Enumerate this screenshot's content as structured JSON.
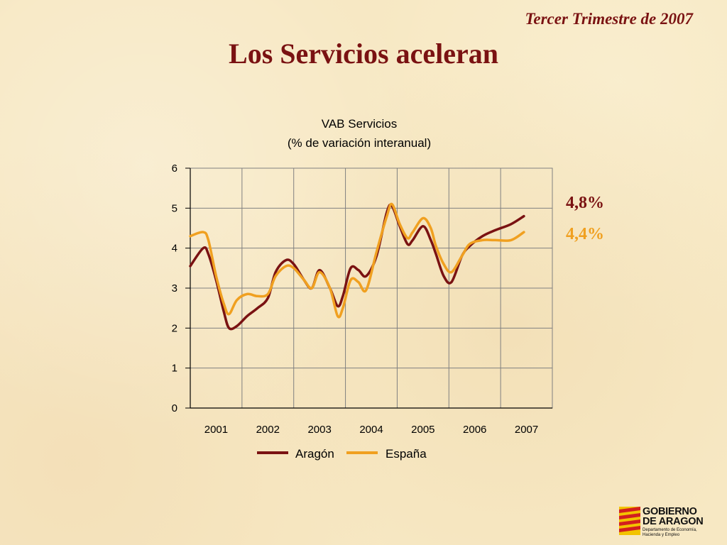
{
  "header": {
    "period": "Tercer Trimestre de 2007",
    "title": "Los Servicios aceleran"
  },
  "annotations": {
    "aragon_last": {
      "text": "4,8%",
      "color": "#7a1212"
    },
    "espana_last": {
      "text": "4,4%",
      "color": "#f0a020"
    }
  },
  "logo": {
    "line1": "GOBIERNO",
    "line2": "DE ARAGON",
    "sub1": "Departamento de Economía,",
    "sub2": "Hacienda y Empleo"
  },
  "chart_data": {
    "type": "line",
    "title": "VAB Servicios",
    "subtitle": "(% de variación interanual)",
    "x_categories": [
      "2001",
      "2002",
      "2003",
      "2004",
      "2005",
      "2006",
      "2007"
    ],
    "ylim": [
      0,
      6
    ],
    "yticks": [
      "0",
      "1",
      "2",
      "3",
      "4",
      "5",
      "6"
    ],
    "grid": true,
    "legend_position": "bottom",
    "series": [
      {
        "name": "Aragón",
        "color": "#7a1212",
        "x": [
          2000.5,
          2000.75,
          2000.85,
          2001.0,
          2001.15,
          2001.25,
          2001.4,
          2001.6,
          2001.8,
          2002.0,
          2002.15,
          2002.35,
          2002.5,
          2002.7,
          2002.85,
          2003.0,
          2003.2,
          2003.35,
          2003.45,
          2003.6,
          2003.75,
          2003.9,
          2004.1,
          2004.3,
          2004.4,
          2004.55,
          2004.7,
          2004.8,
          2005.0,
          2005.15,
          2005.25,
          2005.4,
          2005.55,
          2005.75,
          2005.9,
          2006.15,
          2006.4,
          2006.7,
          2006.95
        ],
        "values": [
          3.55,
          4.0,
          3.85,
          3.2,
          2.4,
          2.0,
          2.05,
          2.3,
          2.5,
          2.75,
          3.4,
          3.7,
          3.6,
          3.2,
          3.0,
          3.45,
          3.0,
          2.55,
          2.8,
          3.5,
          3.45,
          3.3,
          3.8,
          4.9,
          5.05,
          4.55,
          4.1,
          4.2,
          4.55,
          4.2,
          3.85,
          3.3,
          3.15,
          3.8,
          4.05,
          4.3,
          4.45,
          4.6,
          4.8
        ]
      },
      {
        "name": "España",
        "color": "#f0a020",
        "x": [
          2000.5,
          2000.75,
          2000.85,
          2001.0,
          2001.15,
          2001.25,
          2001.4,
          2001.6,
          2001.8,
          2002.0,
          2002.15,
          2002.35,
          2002.5,
          2002.7,
          2002.85,
          2003.0,
          2003.2,
          2003.35,
          2003.45,
          2003.6,
          2003.75,
          2003.9,
          2004.1,
          2004.3,
          2004.4,
          2004.55,
          2004.7,
          2004.8,
          2005.0,
          2005.15,
          2005.25,
          2005.4,
          2005.55,
          2005.75,
          2005.9,
          2006.15,
          2006.4,
          2006.7,
          2006.95
        ],
        "values": [
          4.3,
          4.4,
          4.2,
          3.3,
          2.6,
          2.35,
          2.7,
          2.85,
          2.8,
          2.85,
          3.3,
          3.55,
          3.5,
          3.2,
          3.0,
          3.4,
          3.0,
          2.3,
          2.5,
          3.2,
          3.15,
          2.95,
          3.9,
          4.8,
          5.1,
          4.6,
          4.25,
          4.4,
          4.75,
          4.5,
          4.05,
          3.6,
          3.4,
          3.8,
          4.1,
          4.2,
          4.2,
          4.2,
          4.4
        ]
      }
    ]
  }
}
